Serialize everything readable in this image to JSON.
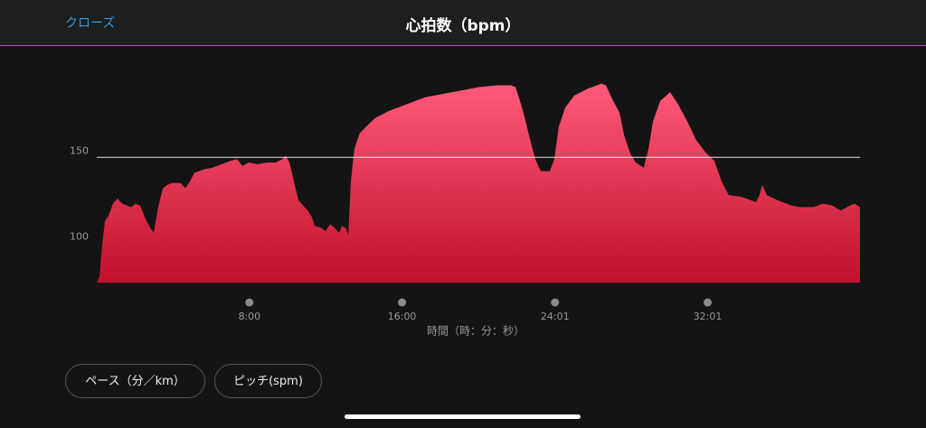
{
  "header": {
    "close": "クローズ",
    "title": "心拍数（bpm）"
  },
  "chart_data": {
    "type": "area",
    "x": [
      0,
      9,
      17,
      26,
      37,
      51,
      65,
      80,
      94,
      108,
      122,
      136,
      145,
      156,
      168,
      179,
      193,
      208,
      222,
      236,
      264,
      279,
      293,
      307,
      336,
      364,
      392,
      421,
      441,
      458,
      478,
      506,
      535,
      563,
      583,
      594,
      606,
      620,
      634,
      663,
      677,
      685,
      705,
      719,
      734,
      748,
      762,
      771,
      782,
      791,
      799,
      810,
      827,
      847,
      876,
      918,
      975,
      1032,
      1089,
      1146,
      1203,
      1260,
      1302,
      1317,
      1339,
      1359,
      1379,
      1396,
      1425,
      1439,
      1453,
      1473,
      1501,
      1544,
      1587,
      1601,
      1621,
      1644,
      1658,
      1678,
      1695,
      1720,
      1735,
      1749,
      1772,
      1803,
      1828,
      1857,
      1885,
      1914,
      1942,
      1965,
      1987,
      2027,
      2073,
      2084,
      2093,
      2107,
      2141,
      2184,
      2212,
      2255,
      2283,
      2312,
      2340,
      2369,
      2383,
      2400
    ],
    "values": [
      77,
      81,
      99,
      113,
      116,
      123,
      126,
      123,
      122,
      121,
      123,
      122,
      118,
      113,
      109,
      106,
      121,
      132,
      134,
      135,
      135,
      132,
      136,
      141,
      143,
      144,
      146,
      148,
      149,
      145,
      147,
      146,
      147,
      147,
      149,
      151,
      147,
      136,
      125,
      119,
      115,
      110,
      109,
      107,
      111,
      109,
      106,
      110,
      109,
      105,
      136,
      155,
      164,
      168,
      173,
      177,
      181,
      185,
      187,
      189,
      191,
      192,
      192,
      191,
      178,
      163,
      149,
      142,
      142,
      149,
      168,
      179,
      186,
      190,
      193,
      192,
      184,
      176,
      163,
      152,
      147,
      144,
      155,
      171,
      183,
      188,
      181,
      171,
      160,
      153,
      148,
      136,
      128,
      127,
      124,
      128,
      134,
      128,
      125,
      122,
      121,
      121,
      123,
      122,
      119,
      122,
      123,
      121
    ],
    "colors": [
      "#ff5b7a",
      "#c1102b"
    ],
    "reference_line": 150,
    "xlim": [
      0,
      2400
    ],
    "ylim": [
      77,
      200
    ],
    "xticks": [
      {
        "value": 480,
        "label": "8:00"
      },
      {
        "value": 960,
        "label": "16:00"
      },
      {
        "value": 1441,
        "label": "24:01"
      },
      {
        "value": 1921,
        "label": "32:01"
      }
    ],
    "yticks": [
      100,
      150
    ],
    "xlabel": "時間（時：分：秒）"
  },
  "buttons": [
    "ペース（分／km）",
    "ピッチ(spm)"
  ]
}
